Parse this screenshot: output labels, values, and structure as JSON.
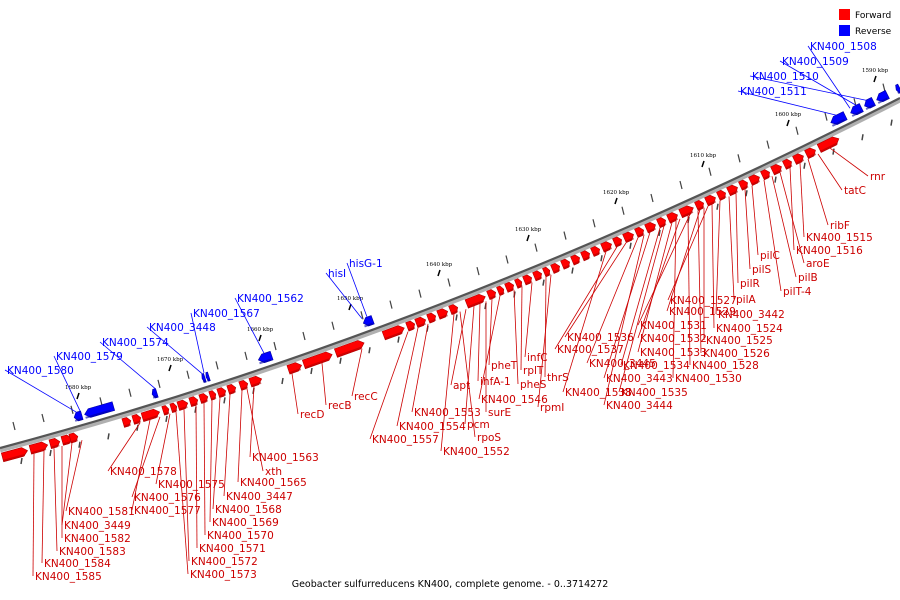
{
  "caption": "Geobacter sulfurreducens KN400, complete genome. - 0..3714272",
  "legend": {
    "forward_label": "Forward",
    "reverse_label": "Reverse",
    "forward_color": "#ff0000",
    "reverse_color": "#0000ff"
  },
  "ticks": [
    "1590 kbp",
    "1600 kbp",
    "1610 kbp",
    "1620 kbp",
    "1630 kbp",
    "1640 kbp",
    "1650 kbp",
    "1660 kbp",
    "1670 kbp",
    "1680 kbp"
  ],
  "reverse_genes": [
    "KN400_1508",
    "KN400_1509",
    "KN400_1510",
    "KN400_1511",
    "hisG-1",
    "hisI",
    "KN400_1562",
    "KN400_1567",
    "KN400_3448",
    "KN400_1574",
    "KN400_1579",
    "KN400_1580"
  ],
  "forward_genes": [
    "rnr",
    "tatC",
    "ribF",
    "KN400_1515",
    "KN400_1516",
    "aroE",
    "pilB",
    "pilT-4",
    "pilC",
    "pilS",
    "pilR",
    "pilA",
    "KN400_3442",
    "KN400_1527",
    "KN400_1529",
    "KN400_1524",
    "KN400_1531",
    "KN400_1525",
    "KN400_1532",
    "KN400_1533",
    "KN400_1526",
    "KN400_1536",
    "KN400_1537",
    "KN400_3445",
    "KN400_1528",
    "KN400_1534",
    "KN400_1530",
    "KN400_3443",
    "KN400_1535",
    "KN400_1538",
    "KN400_3444",
    "infC",
    "rplT",
    "thrS",
    "pheT",
    "pheS",
    "rpmI",
    "apt",
    "ihfA-1",
    "KN400_1546",
    "surE",
    "pcm",
    "rpoS",
    "KN400_1552",
    "KN400_1553",
    "KN400_1554",
    "KN400_1557",
    "recC",
    "recB",
    "recD",
    "KN400_1563",
    "xth",
    "KN400_1565",
    "KN400_3447",
    "KN400_1568",
    "KN400_1569",
    "KN400_1570",
    "KN400_1571",
    "KN400_1572",
    "KN400_1573",
    "KN400_1575",
    "KN400_1576",
    "KN400_1577",
    "KN400_1578",
    "KN400_1581",
    "KN400_3449",
    "KN400_1582",
    "KN400_1583",
    "KN400_1584",
    "KN400_1585"
  ]
}
